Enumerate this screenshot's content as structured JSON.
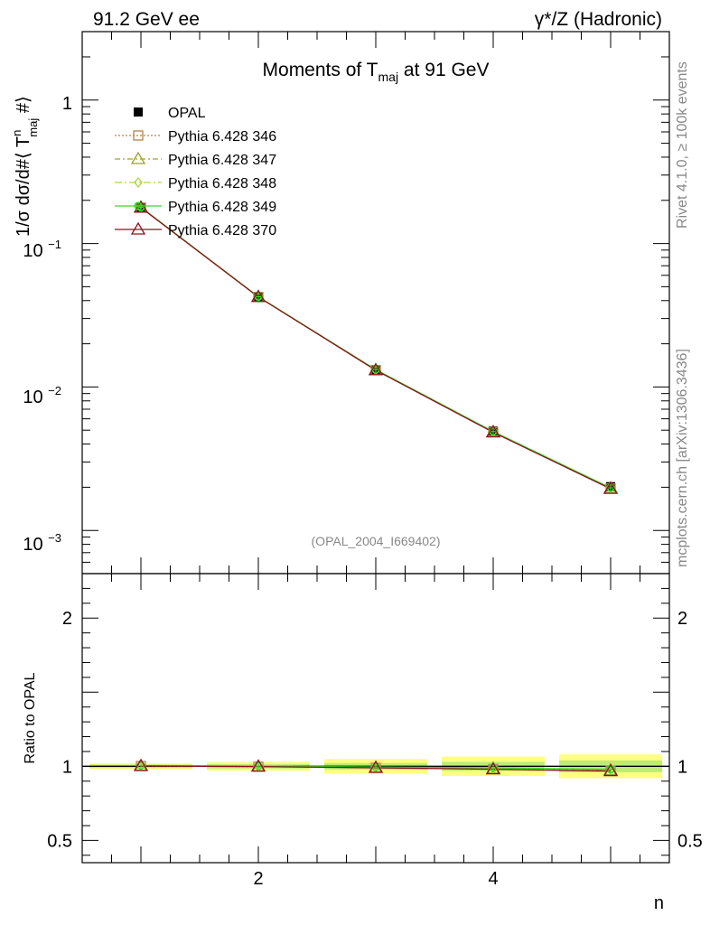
{
  "header": {
    "left": "91.2 GeV ee",
    "right": "γ*/Z (Hadronic)"
  },
  "side_labels": {
    "rivet": "Rivet 4.1.0, ≥ 100k events",
    "mcplots": "mcplots.cern.ch [arXiv:1306.3436]"
  },
  "chart_data": {
    "type": "line",
    "title": "Moments of T",
    "title_sub": "maj",
    "title_tail": " at 91 GeV",
    "ylabel_main": "1/σ  dσ/d#⟨ T",
    "ylabel_sup": "n",
    "ylabel_sub": "maj",
    "ylabel_tail": " #⟩",
    "ylabel_ratio": "Ratio to OPAL",
    "xlabel": "n",
    "annotation": "(OPAL_2004_I669402)",
    "x": [
      1,
      2,
      3,
      4,
      5
    ],
    "xlim": [
      0.5,
      5.5
    ],
    "ylim_main": [
      0.0005,
      3.0
    ],
    "ylim_ratio": [
      0.35,
      2.3
    ],
    "x_ticks": [
      "2",
      "4"
    ],
    "y_ticks_main": [
      "1",
      "10",
      "10",
      "10"
    ],
    "y_ticks_main_exp": [
      "",
      "−1",
      "−2",
      "−3"
    ],
    "y_ticks_ratio": [
      "2",
      "1",
      "0.5"
    ],
    "data": {
      "name": "OPAL",
      "values": [
        0.178,
        0.0425,
        0.0132,
        0.00493,
        0.00202
      ],
      "errors": [
        0.004,
        0.0012,
        0.0004,
        0.0002,
        0.0001
      ]
    },
    "series": [
      {
        "name": "Pythia 6.428 346",
        "color": "#b5834a",
        "marker": "square",
        "dash": "2,2",
        "values": [
          0.178,
          0.0424,
          0.0131,
          0.00484,
          0.00196
        ],
        "ratio": [
          1.002,
          0.998,
          0.99,
          0.982,
          0.97
        ]
      },
      {
        "name": "Pythia 6.428 347",
        "color": "#9fa12e",
        "marker": "triangle",
        "dash": "6,3,2,3",
        "values": [
          0.178,
          0.0425,
          0.0131,
          0.00486,
          0.00197
        ],
        "ratio": [
          1.003,
          1.0,
          0.992,
          0.985,
          0.974
        ]
      },
      {
        "name": "Pythia 6.428 348",
        "color": "#a6d93c",
        "marker": "diamond",
        "dash": "8,3,2,3",
        "values": [
          0.178,
          0.0425,
          0.0131,
          0.00487,
          0.00197
        ],
        "ratio": [
          1.004,
          1.001,
          0.993,
          0.987,
          0.976
        ]
      },
      {
        "name": "Pythia 6.428 349",
        "color": "#33dd22",
        "marker": "circle-plus",
        "dash": "",
        "values": [
          0.179,
          0.0426,
          0.0132,
          0.00489,
          0.00198
        ],
        "ratio": [
          1.005,
          1.002,
          0.995,
          0.99,
          0.98
        ]
      },
      {
        "name": "Pythia 6.428 370",
        "color": "#8a1020",
        "marker": "triangle",
        "dash": "",
        "values": [
          0.178,
          0.0424,
          0.0131,
          0.00483,
          0.00195
        ],
        "ratio": [
          1.002,
          0.998,
          0.99,
          0.98,
          0.968
        ]
      }
    ],
    "ratio_band": {
      "inner_color": "#88dd66",
      "outer_color": "#ffff80",
      "inner": [
        0.012,
        0.015,
        0.022,
        0.03,
        0.04
      ],
      "outer": [
        0.02,
        0.03,
        0.05,
        0.065,
        0.08
      ]
    }
  }
}
